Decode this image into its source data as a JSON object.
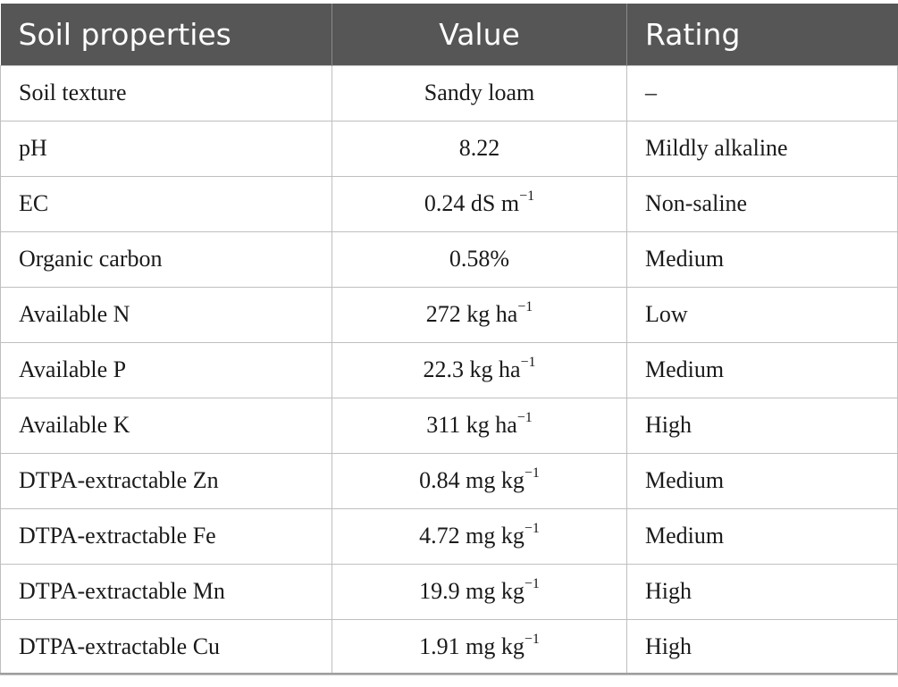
{
  "table": {
    "headers": [
      "Soil properties",
      "Value",
      "Rating"
    ],
    "rows": [
      {
        "property": "Soil texture",
        "value": "Sandy loam",
        "unit_sup": "",
        "rating": "–"
      },
      {
        "property": "pH",
        "value": "8.22",
        "unit_sup": "",
        "rating": "Mildly alkaline"
      },
      {
        "property": "EC",
        "value": "0.24 dS m",
        "unit_sup": "−1",
        "rating": "Non-saline"
      },
      {
        "property": "Organic carbon",
        "value": "0.58%",
        "unit_sup": "",
        "rating": "Medium"
      },
      {
        "property": "Available N",
        "value": "272 kg ha",
        "unit_sup": "−1",
        "rating": "Low"
      },
      {
        "property": "Available P",
        "value": "22.3 kg ha",
        "unit_sup": "−1",
        "rating": "Medium"
      },
      {
        "property": "Available K",
        "value": "311 kg ha",
        "unit_sup": "−1",
        "rating": "High"
      },
      {
        "property": "DTPA-extractable Zn",
        "value": "0.84 mg kg",
        "unit_sup": "−1",
        "rating": "Medium"
      },
      {
        "property": "DTPA-extractable Fe",
        "value": "4.72 mg kg",
        "unit_sup": "−1",
        "rating": "Medium"
      },
      {
        "property": "DTPA-extractable Mn",
        "value": "19.9 mg kg",
        "unit_sup": "−1",
        "rating": "High"
      },
      {
        "property": "DTPA-extractable Cu",
        "value": "1.91 mg kg",
        "unit_sup": "−1",
        "rating": "High"
      }
    ]
  },
  "colors": {
    "header_bg": "#565656",
    "header_text": "#ffffff",
    "grid": "#bfbfbf"
  }
}
